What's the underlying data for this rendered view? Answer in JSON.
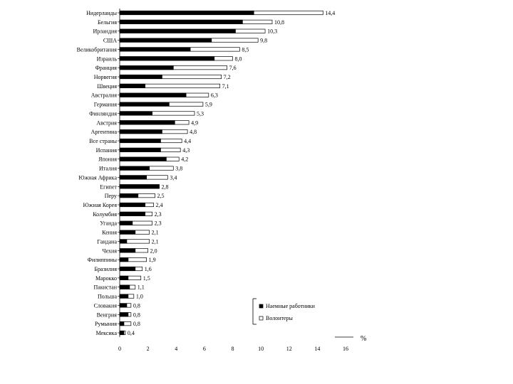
{
  "chart_data": {
    "type": "bar",
    "orientation": "horizontal",
    "xlabel": "%",
    "xlim": [
      0,
      16
    ],
    "xticks": [
      0,
      2,
      4,
      6,
      8,
      10,
      12,
      14,
      16
    ],
    "categories": [
      "Нидерланды",
      "Бельгия",
      "Ирландия",
      "США",
      "Великобритания",
      "Израиль",
      "Франция",
      "Норвегия",
      "Швеция",
      "Австралия",
      "Германия",
      "Финляндия",
      "Австрия",
      "Аргентина",
      "Все страны",
      "Испания",
      "Япония",
      "Италия",
      "Южная Африка",
      "Египет",
      "Перу",
      "Южная Корея",
      "Колумбия",
      "Уганда",
      "Кения",
      "Гандана",
      "Чехия",
      "Филиппины",
      "Бразилия",
      "Марокко",
      "Пакистан",
      "Польша",
      "Словакия",
      "Венгрия",
      "Румыния",
      "Мексика"
    ],
    "series": [
      {
        "name": "Наемные работники",
        "color": "#000000",
        "values": [
          9.5,
          8.7,
          8.2,
          6.5,
          5,
          6.7,
          3.8,
          3,
          1.8,
          4.7,
          3.5,
          2.3,
          3.9,
          3,
          2.9,
          2.9,
          3.3,
          2.1,
          1.9,
          2.8,
          1.3,
          1.8,
          1.8,
          0.9,
          1.1,
          0.5,
          1.1,
          0.6,
          1.1,
          0.6,
          0.7,
          0.6,
          0.5,
          0.6,
          0.3,
          0.3
        ]
      },
      {
        "name": "Волонтеры",
        "color": "#ffffff",
        "values": [
          14.4,
          10.8,
          10.3,
          9.8,
          8.5,
          8,
          7.6,
          7.2,
          7.1,
          6.3,
          5.9,
          5.3,
          4.9,
          4.8,
          4.4,
          4.3,
          4.2,
          3.8,
          3.4,
          2.8,
          2.5,
          2.4,
          2.3,
          2.3,
          2.1,
          2.1,
          2,
          1.9,
          1.6,
          1.5,
          1.1,
          1,
          0.8,
          0.8,
          0.8,
          0.4
        ]
      }
    ],
    "value_labels": [
      "14,4",
      "10,8",
      "10,3",
      "9,8",
      "8,5",
      "8,0",
      "7,6",
      "7,2",
      "7,1",
      "6,3",
      "5,9",
      "5,3",
      "4,9",
      "4,8",
      "4,4",
      "4,3",
      "4,2",
      "3,8",
      "3,4",
      "2,8",
      "2,5",
      "2,4",
      "2,3",
      "2,3",
      "2,1",
      "2,1",
      "2,0",
      "1,9",
      "1,6",
      "1,5",
      "1,1",
      "1,0",
      "0,8",
      "0,8",
      "0,8",
      "0,4"
    ],
    "legend": {
      "position": "bottom-right",
      "entries": [
        "Наемные работники",
        "Волонтеры"
      ]
    }
  }
}
